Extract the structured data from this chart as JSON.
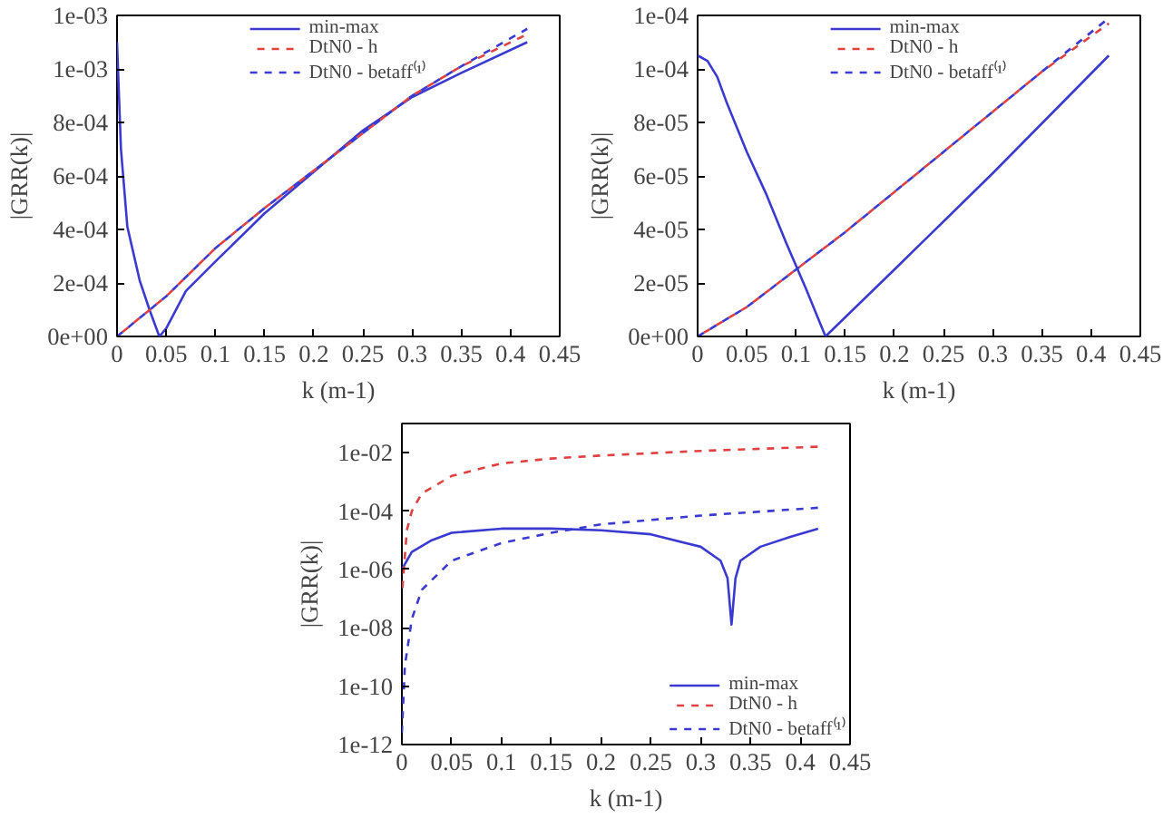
{
  "chart_data": [
    {
      "type": "line",
      "xlabel": "k (m-1)",
      "ylabel": "|GRR(k)|",
      "legend": "top",
      "xlim": [
        0,
        0.45
      ],
      "ylim": [
        0,
        0.0012
      ],
      "xticks": [
        0,
        0.05,
        0.1,
        0.15,
        0.2,
        0.25,
        0.3,
        0.35,
        0.4,
        0.45
      ],
      "yticks": [
        {
          "value": 0,
          "label": "0e+00"
        },
        {
          "value": 0.0002,
          "label": "2e-04"
        },
        {
          "value": 0.0004,
          "label": "4e-04"
        },
        {
          "value": 0.0006,
          "label": "6e-04"
        },
        {
          "value": 0.0008,
          "label": "8e-04"
        },
        {
          "value": 0.001,
          "label": "1e-03"
        },
        {
          "value": 0.0012,
          "label": "1e-03"
        }
      ],
      "series": [
        {
          "name": "min-max",
          "color": "#3a3ad0",
          "line_style": "solid",
          "x": [
            0,
            0.004,
            0.0105,
            0.023,
            0.033,
            0.043,
            0.05,
            0.07,
            0.1,
            0.15,
            0.2,
            0.25,
            0.3,
            0.35,
            0.417
          ],
          "values": [
            0.0011,
            0.0007,
            0.00041,
            0.00021,
            0.0001,
            0,
            3e-05,
            0.00017,
            0.00028,
            0.00046,
            0.000615,
            0.00077,
            0.000895,
            0.000985,
            0.0011
          ]
        },
        {
          "name": "DtN0 - h",
          "color": "#e04040",
          "line_style": "dashed",
          "x": [
            0,
            0.05,
            0.1,
            0.15,
            0.2,
            0.25,
            0.3,
            0.35,
            0.417
          ],
          "values": [
            0,
            0.00015,
            0.00033,
            0.00048,
            0.00062,
            0.00076,
            0.0009,
            0.00101,
            0.00113
          ]
        },
        {
          "name": "DtN0 - betaff⁽¹⁾",
          "color": "#3a3ad0",
          "line_style": "dashed",
          "x": [
            0,
            0.05,
            0.1,
            0.15,
            0.2,
            0.25,
            0.3,
            0.35,
            0.417
          ],
          "values": [
            0,
            0.00015,
            0.00033,
            0.00048,
            0.00062,
            0.00076,
            0.0009,
            0.00101,
            0.00115
          ]
        }
      ]
    },
    {
      "type": "line",
      "xlabel": "k (m-1)",
      "ylabel": "|GRR(k)|",
      "legend": "top",
      "xlim": [
        0,
        0.45
      ],
      "ylim": [
        0,
        0.00012
      ],
      "xticks": [
        0,
        0.05,
        0.1,
        0.15,
        0.2,
        0.25,
        0.3,
        0.35,
        0.4,
        0.45
      ],
      "yticks": [
        {
          "value": 0,
          "label": "0e+00"
        },
        {
          "value": 2e-05,
          "label": "2e-05"
        },
        {
          "value": 4e-05,
          "label": "4e-05"
        },
        {
          "value": 6e-05,
          "label": "6e-05"
        },
        {
          "value": 8e-05,
          "label": "8e-05"
        },
        {
          "value": 0.0001,
          "label": "1e-04"
        },
        {
          "value": 0.00012,
          "label": "1e-04"
        }
      ],
      "series": [
        {
          "name": "min-max",
          "color": "#3a3ad0",
          "line_style": "solid",
          "x": [
            0,
            0.01,
            0.02,
            0.03,
            0.05,
            0.07,
            0.09,
            0.11,
            0.13,
            0.2,
            0.3,
            0.418
          ],
          "values": [
            0.000105,
            0.000103,
            9.7e-05,
            8.7e-05,
            6.9e-05,
            5.3e-05,
            3.5e-05,
            1.8e-05,
            0,
            2.5e-05,
            6.1e-05,
            0.000105
          ]
        },
        {
          "name": "DtN0 - h",
          "color": "#e04040",
          "line_style": "dashed",
          "x": [
            0,
            0.05,
            0.1,
            0.15,
            0.2,
            0.25,
            0.3,
            0.35,
            0.418
          ],
          "values": [
            0,
            1.1e-05,
            2.5e-05,
            3.9e-05,
            5.4e-05,
            6.9e-05,
            8.4e-05,
            9.9e-05,
            0.000117
          ]
        },
        {
          "name": "DtN0 - betaff⁽¹⁾",
          "color": "#3a3ad0",
          "line_style": "dashed",
          "x": [
            0,
            0.05,
            0.1,
            0.15,
            0.2,
            0.25,
            0.3,
            0.35,
            0.418
          ],
          "values": [
            0,
            1.1e-05,
            2.5e-05,
            3.9e-05,
            5.4e-05,
            6.9e-05,
            8.4e-05,
            9.9e-05,
            0.000119
          ]
        }
      ]
    },
    {
      "type": "line",
      "xlabel": "k (m-1)",
      "ylabel": "|GRR(k)|",
      "legend": "bottom right",
      "log": "y",
      "xlim": [
        0,
        0.45
      ],
      "ylim": [
        1e-12,
        0.1
      ],
      "xticks": [
        0,
        0.05,
        0.1,
        0.15,
        0.2,
        0.25,
        0.3,
        0.35,
        0.4,
        0.45
      ],
      "yticks": [
        {
          "value": 1e-12,
          "label": "1e-12"
        },
        {
          "value": 1e-10,
          "label": "1e-10"
        },
        {
          "value": 1e-08,
          "label": "1e-08"
        },
        {
          "value": 1e-06,
          "label": "1e-06"
        },
        {
          "value": 0.0001,
          "label": "1e-04"
        },
        {
          "value": 0.01,
          "label": "1e-02"
        }
      ],
      "series": [
        {
          "name": "min-max",
          "color": "#3a3ad0",
          "line_style": "solid",
          "x": [
            0,
            0.01,
            0.03,
            0.05,
            0.1,
            0.15,
            0.2,
            0.25,
            0.3,
            0.32,
            0.327,
            0.331,
            0.335,
            0.34,
            0.36,
            0.39,
            0.418
          ],
          "values": [
            1e-06,
            4e-06,
            1e-05,
            1.8e-05,
            2.5e-05,
            2.5e-05,
            2.2e-05,
            1.6e-05,
            6e-06,
            2e-06,
            5e-07,
            1.3e-08,
            5e-07,
            2e-06,
            6e-06,
            1.3e-05,
            2.5e-05
          ]
        },
        {
          "name": "DtN0 - h",
          "color": "#e04040",
          "line_style": "dashed",
          "x": [
            0,
            0.005,
            0.01,
            0.02,
            0.05,
            0.1,
            0.15,
            0.2,
            0.3,
            0.418
          ],
          "values": [
            1.3e-07,
            2.2e-05,
            0.0001,
            0.0004,
            0.0016,
            0.0043,
            0.0063,
            0.008,
            0.0115,
            0.016
          ]
        },
        {
          "name": "DtN0 - betaff⁽¹⁾",
          "color": "#3a3ad0",
          "line_style": "dashed",
          "x": [
            0,
            0.003,
            0.01,
            0.02,
            0.05,
            0.1,
            0.15,
            0.2,
            0.3,
            0.418
          ],
          "values": [
            2.5e-12,
            5e-10,
            2e-08,
            2e-07,
            2e-06,
            8e-06,
            1.8e-05,
            3.5e-05,
            7e-05,
            0.00013
          ]
        }
      ]
    }
  ]
}
